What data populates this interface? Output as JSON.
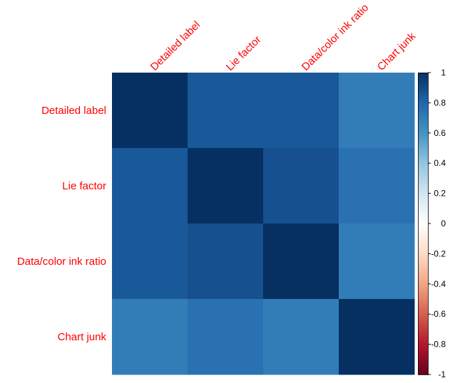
{
  "chart_data": {
    "type": "heatmap",
    "title": "",
    "row_labels": [
      "Detailed label",
      "Lie factor",
      "Data/color ink ratio",
      "Chart junk"
    ],
    "col_labels": [
      "Detailed label",
      "Lie factor",
      "Data/color ink ratio",
      "Chart junk"
    ],
    "values": [
      [
        1.0,
        0.85,
        0.85,
        0.7
      ],
      [
        0.85,
        1.0,
        0.88,
        0.75
      ],
      [
        0.85,
        0.88,
        1.0,
        0.7
      ],
      [
        0.7,
        0.75,
        0.7,
        1.0
      ]
    ],
    "color_scale": {
      "range": [
        -1,
        1
      ],
      "ticks": [
        "1",
        "0.8",
        "0.6",
        "0.4",
        "0.2",
        "0",
        "-0.2",
        "-0.4",
        "-0.6",
        "-0.8",
        "-1"
      ],
      "colors": [
        "#67001F",
        "#B2182B",
        "#D6604D",
        "#F4A582",
        "#FDDBC7",
        "#FFFFFF",
        "#D1E5F0",
        "#92C5DE",
        "#4393C3",
        "#2166AC",
        "#053061"
      ]
    },
    "label_color": "#ff0000",
    "legend": "right"
  }
}
